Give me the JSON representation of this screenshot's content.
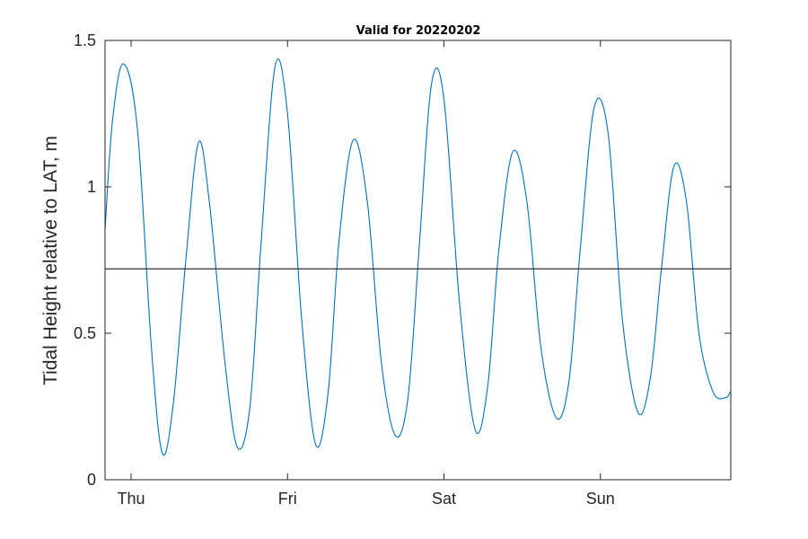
{
  "chart_data": {
    "type": "line",
    "title": "Valid for 20220202",
    "xlabel": "",
    "ylabel": "Tidal Height relative to LAT, m",
    "xlim": [
      -0.1665,
      3.8335
    ],
    "ylim": [
      0,
      1.5
    ],
    "yticks": [
      0,
      0.5,
      1,
      1.5
    ],
    "ytick_labels": [
      "0",
      "0.5",
      "1",
      "1.5"
    ],
    "xticks": [
      0,
      1,
      2,
      3
    ],
    "xtick_labels": [
      "Thu",
      "Fri",
      "Sat",
      "Sun"
    ],
    "grid": false,
    "series": [
      {
        "color": "#0072BD",
        "x": [
          -0.167,
          -0.12,
          -0.05,
          0.04,
          0.13,
          0.2,
          0.27,
          0.35,
          0.43,
          0.5,
          0.6,
          0.68,
          0.76,
          0.83,
          0.92,
          1.0,
          1.09,
          1.18,
          1.26,
          1.33,
          1.42,
          1.51,
          1.6,
          1.69,
          1.77,
          1.84,
          1.92,
          2.0,
          2.1,
          2.2,
          2.28,
          2.35,
          2.44,
          2.53,
          2.62,
          2.72,
          2.8,
          2.87,
          2.96,
          3.05,
          3.14,
          3.24,
          3.32,
          3.39,
          3.47,
          3.55,
          3.63,
          3.72,
          3.8,
          3.83
        ],
        "y": [
          0.85,
          1.22,
          1.42,
          1.2,
          0.45,
          0.09,
          0.26,
          0.75,
          1.15,
          0.95,
          0.4,
          0.11,
          0.25,
          0.8,
          1.41,
          1.25,
          0.55,
          0.12,
          0.3,
          0.82,
          1.16,
          0.95,
          0.4,
          0.15,
          0.28,
          0.78,
          1.35,
          1.3,
          0.6,
          0.17,
          0.32,
          0.78,
          1.12,
          0.95,
          0.45,
          0.21,
          0.34,
          0.78,
          1.27,
          1.18,
          0.55,
          0.23,
          0.35,
          0.72,
          1.07,
          0.95,
          0.5,
          0.3,
          0.28,
          0.3
        ]
      }
    ],
    "reference_line": {
      "y": 0.72,
      "color": "#000000"
    }
  }
}
